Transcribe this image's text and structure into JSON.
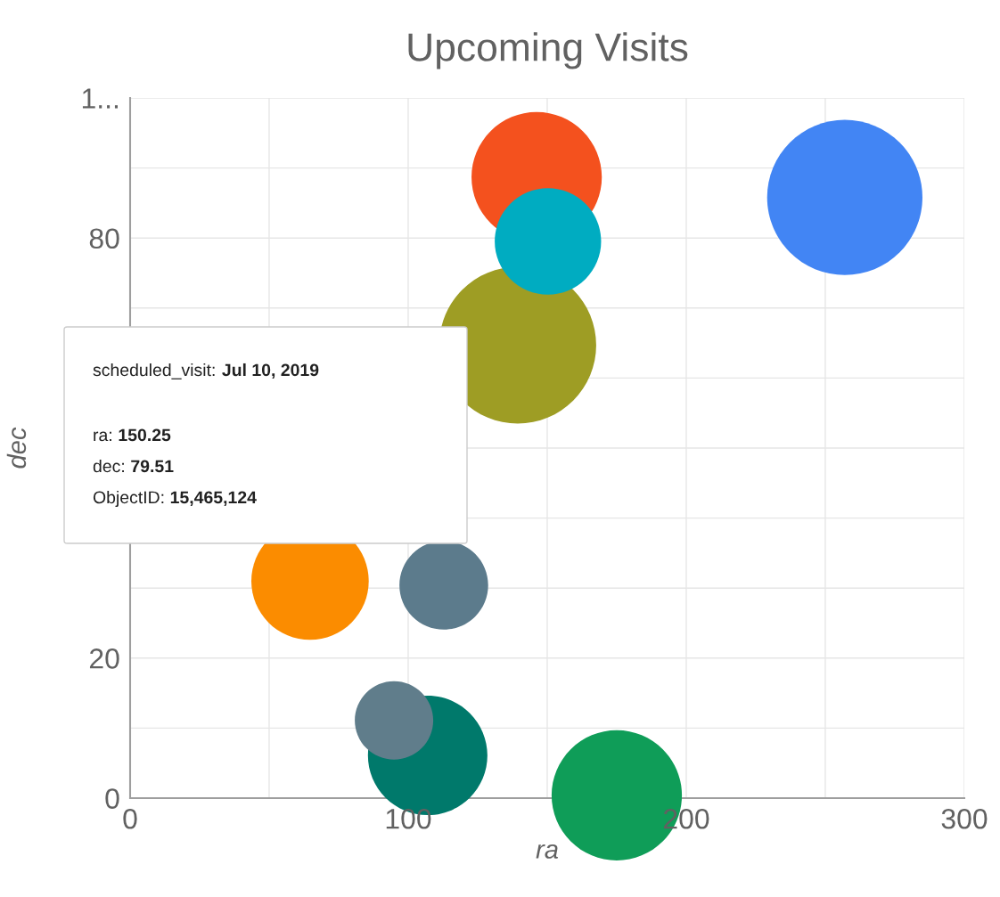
{
  "chart_data": {
    "type": "bubble",
    "title": "Upcoming Visits",
    "xlabel": "ra",
    "ylabel": "dec",
    "x": [
      146.2,
      139.4,
      150.25,
      257,
      64.7,
      112.8,
      107,
      94.9,
      175
    ],
    "values": [
      88.7,
      64.7,
      79.51,
      85.8,
      31.0,
      30.4,
      6.1,
      11.1,
      0.4
    ],
    "sizes": [
      0.69,
      1,
      0.46,
      0.98,
      0.56,
      0.32,
      0.58,
      0.25,
      0.69
    ],
    "colors": [
      "#f4511e",
      "#9e9d24",
      "#00acc1",
      "#4285f4",
      "#fb8c00",
      "#5c7b8c",
      "#00796b",
      "#607d8b",
      "#0f9d58"
    ],
    "xlim": [
      0,
      300
    ],
    "ylim": [
      0,
      100
    ],
    "xticks": [
      0,
      {
        "value": 50,
        "label": null
      },
      100,
      {
        "value": 150,
        "label": null
      },
      200,
      {
        "value": 250,
        "label": null
      },
      300
    ],
    "yticks": [
      0,
      {
        "value": 10,
        "label": null
      },
      20,
      {
        "value": 30,
        "label": null
      },
      {
        "value": 40,
        "label": null
      },
      {
        "value": 50,
        "label": null
      },
      {
        "value": 60,
        "label": null
      },
      {
        "value": 70,
        "label": null
      },
      80,
      {
        "value": 90,
        "label": null
      },
      {
        "value": 100,
        "label": "1..."
      }
    ],
    "grid": true,
    "annotations": [
      "scheduled_visit: Jul 10, 2019",
      "ra: 150.25",
      "dec: 79.51",
      "ObjectID: 15,465,124"
    ]
  }
}
